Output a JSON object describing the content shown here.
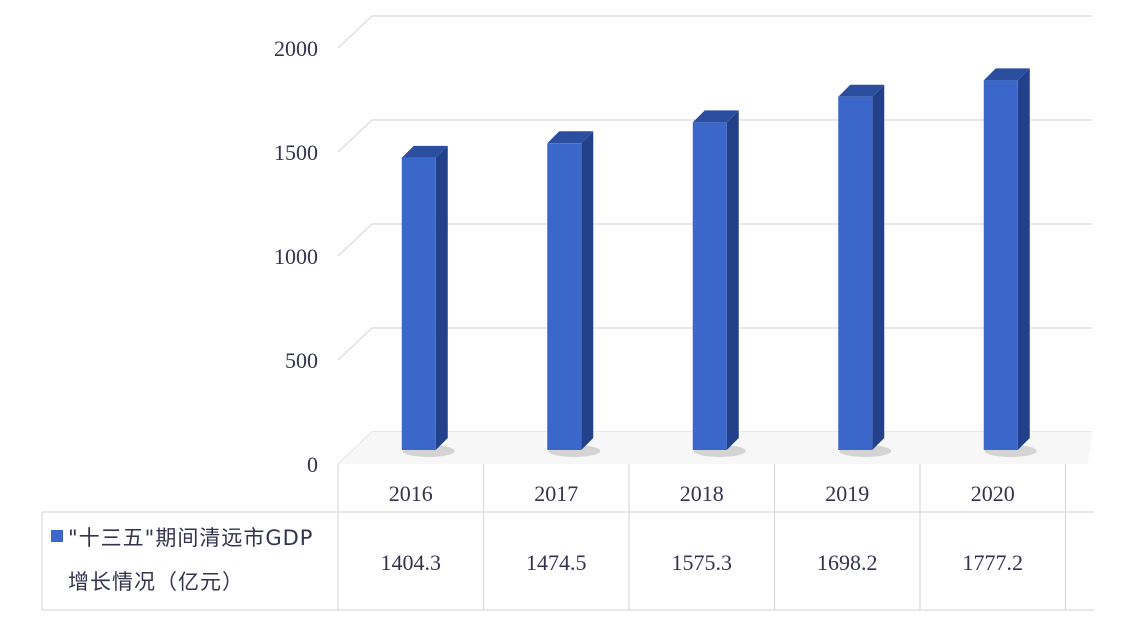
{
  "chart_data": {
    "type": "bar",
    "categories": [
      "2016",
      "2017",
      "2018",
      "2019",
      "2020"
    ],
    "series": [
      {
        "name": "\"十三五\"期间清远市GDP增长情况（亿元）",
        "values": [
          1404.3,
          1474.5,
          1575.3,
          1698.2,
          1777.2
        ],
        "color": "#3a67c9"
      }
    ],
    "y_ticks": [
      "0",
      "500",
      "1000",
      "1500",
      "2000"
    ],
    "ylim": [
      0,
      2000
    ],
    "grid": true,
    "data_table": true,
    "legend_line1": "\"十三五\"期间清远市GDP",
    "legend_line2": "增长情况（亿元）",
    "value_labels": [
      "1404.3",
      "1474.5",
      "1575.3",
      "1698.2",
      "1777.2"
    ]
  }
}
